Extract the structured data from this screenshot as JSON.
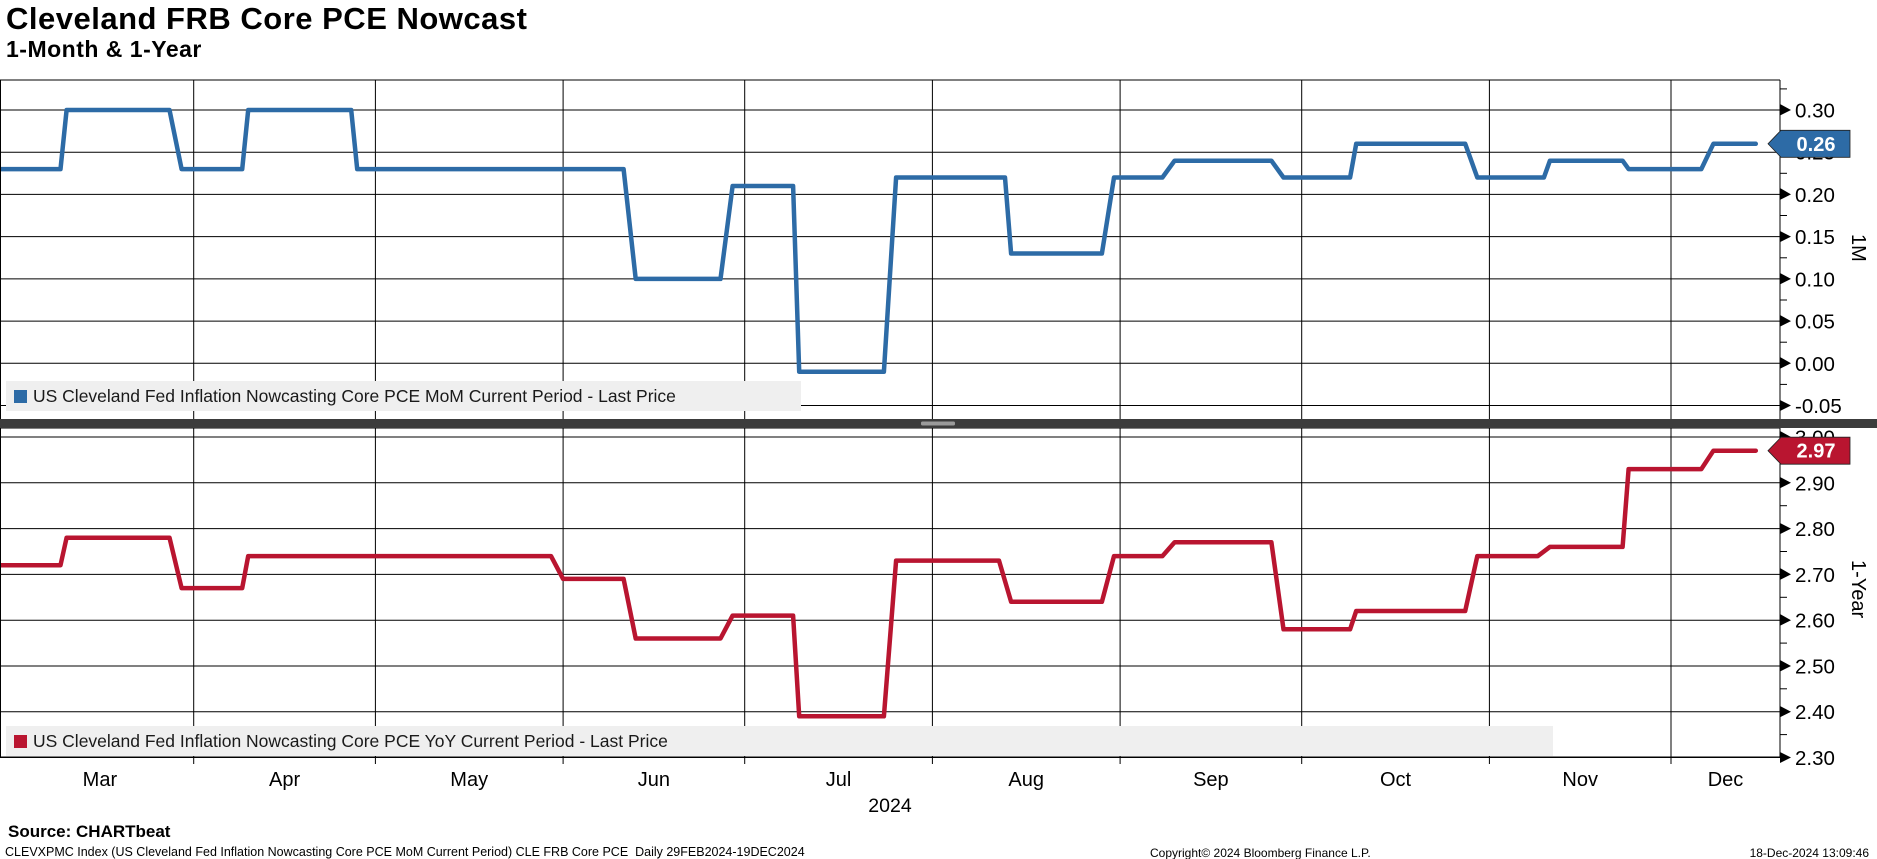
{
  "header": {
    "title": "Cleveland FRB Core PCE Nowcast",
    "subtitle": "1-Month & 1-Year"
  },
  "chart_data": [
    {
      "type": "step-line",
      "id": "mom",
      "panel": "top",
      "axis_label": "1M",
      "legend": "US Cleveland Fed Inflation Nowcasting Core PCE MoM Current Period - Last Price",
      "color": "#2d6ba6",
      "last_price": 0.26,
      "last_price_label": "0.26",
      "yticks": [
        "0.30",
        "0.25",
        "0.20",
        "0.15",
        "0.10",
        "0.05",
        "0.00",
        "-0.05"
      ],
      "ylim": [
        -0.06,
        0.34
      ],
      "steps_day_value": [
        [
          0,
          10,
          0.23
        ],
        [
          11,
          28,
          0.3
        ],
        [
          30,
          40,
          0.23
        ],
        [
          41,
          58,
          0.3
        ],
        [
          59,
          103,
          0.23
        ],
        [
          105,
          119,
          0.1
        ],
        [
          121,
          131,
          0.21
        ],
        [
          132,
          146,
          -0.01
        ],
        [
          148,
          166,
          0.22
        ],
        [
          167,
          182,
          0.13
        ],
        [
          184,
          192,
          0.22
        ],
        [
          194,
          210,
          0.24
        ],
        [
          212,
          223,
          0.22
        ],
        [
          224,
          242,
          0.26
        ],
        [
          244,
          255,
          0.22
        ],
        [
          256,
          268,
          0.24
        ],
        [
          269,
          281,
          0.23
        ],
        [
          283,
          290,
          0.26
        ]
      ]
    },
    {
      "type": "step-line",
      "id": "yoy",
      "panel": "bottom",
      "axis_label": "1-Year",
      "legend": "US Cleveland Fed Inflation Nowcasting Core PCE YoY Current Period - Last Price",
      "color": "#b91530",
      "last_price": 2.97,
      "last_price_label": "2.97",
      "yticks": [
        "3.00",
        "2.90",
        "2.80",
        "2.70",
        "2.60",
        "2.50",
        "2.40",
        "2.30"
      ],
      "ylim": [
        2.3,
        3.02
      ],
      "steps_day_value": [
        [
          0,
          10,
          2.72
        ],
        [
          11,
          28,
          2.78
        ],
        [
          30,
          40,
          2.67
        ],
        [
          41,
          91,
          2.74
        ],
        [
          93,
          103,
          2.69
        ],
        [
          105,
          119,
          2.56
        ],
        [
          121,
          131,
          2.61
        ],
        [
          132,
          146,
          2.39
        ],
        [
          148,
          165,
          2.73
        ],
        [
          167,
          182,
          2.64
        ],
        [
          184,
          192,
          2.74
        ],
        [
          194,
          210,
          2.77
        ],
        [
          212,
          223,
          2.58
        ],
        [
          224,
          242,
          2.62
        ],
        [
          244,
          254,
          2.74
        ],
        [
          256,
          268,
          2.76
        ],
        [
          269,
          281,
          2.93
        ],
        [
          283,
          290,
          2.97
        ]
      ]
    }
  ],
  "x_axis": {
    "months": [
      "Mar",
      "Apr",
      "May",
      "Jun",
      "Jul",
      "Aug",
      "Sep",
      "Oct",
      "Nov",
      "Dec"
    ],
    "year_label": "2024",
    "month_start_days": [
      1,
      32,
      62,
      93,
      123,
      154,
      185,
      215,
      246,
      276
    ],
    "total_days": 294,
    "range_label": "29FEB2024-19DEC2024"
  },
  "footer": {
    "source": "Source: CHARTbeat",
    "description": "CLEVXPMC Index (US Cleveland Fed Inflation Nowcasting Core PCE MoM Current Period) CLE FRB Core PCE  Daily 29FEB2024-19DEC2024",
    "copyright": "Copyright© 2024 Bloomberg Finance L.P.",
    "timestamp": "18-Dec-2024 13:09:46"
  }
}
